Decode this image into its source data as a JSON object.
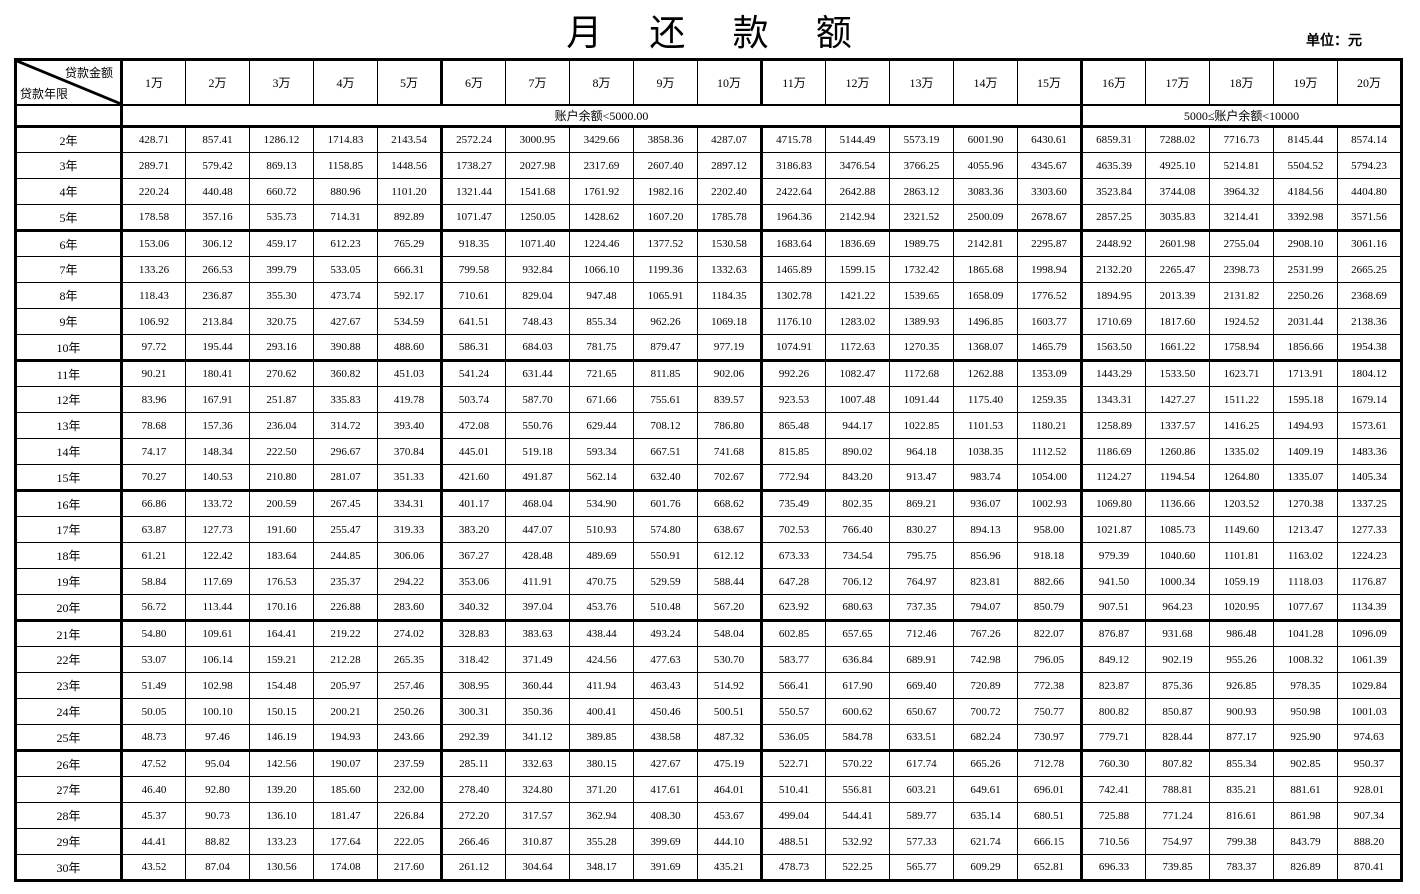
{
  "page": {
    "title": "月 还 款 额",
    "unit_label": "单位：元"
  },
  "colors": {
    "background": "#ffffff",
    "border": "#000000",
    "text": "#000000"
  },
  "table": {
    "corner": {
      "top_right": "贷款金额",
      "bottom_left": "贷款年限"
    },
    "columns": [
      "1万",
      "2万",
      "3万",
      "4万",
      "5万",
      "6万",
      "7万",
      "8万",
      "9万",
      "10万",
      "11万",
      "12万",
      "13万",
      "14万",
      "15万",
      "16万",
      "17万",
      "18万",
      "19万",
      "20万"
    ],
    "balance_groups": [
      {
        "label": "账户余额<5000.00",
        "span": 15
      },
      {
        "label": "5000≤账户余额<10000",
        "span": 5
      }
    ],
    "rows": [
      {
        "label": "2年",
        "values": [
          "428.71",
          "857.41",
          "1286.12",
          "1714.83",
          "2143.54",
          "2572.24",
          "3000.95",
          "3429.66",
          "3858.36",
          "4287.07",
          "4715.78",
          "5144.49",
          "5573.19",
          "6001.90",
          "6430.61",
          "6859.31",
          "7288.02",
          "7716.73",
          "8145.44",
          "8574.14"
        ]
      },
      {
        "label": "3年",
        "values": [
          "289.71",
          "579.42",
          "869.13",
          "1158.85",
          "1448.56",
          "1738.27",
          "2027.98",
          "2317.69",
          "2607.40",
          "2897.12",
          "3186.83",
          "3476.54",
          "3766.25",
          "4055.96",
          "4345.67",
          "4635.39",
          "4925.10",
          "5214.81",
          "5504.52",
          "5794.23"
        ]
      },
      {
        "label": "4年",
        "values": [
          "220.24",
          "440.48",
          "660.72",
          "880.96",
          "1101.20",
          "1321.44",
          "1541.68",
          "1761.92",
          "1982.16",
          "2202.40",
          "2422.64",
          "2642.88",
          "2863.12",
          "3083.36",
          "3303.60",
          "3523.84",
          "3744.08",
          "3964.32",
          "4184.56",
          "4404.80"
        ]
      },
      {
        "label": "5年",
        "values": [
          "178.58",
          "357.16",
          "535.73",
          "714.31",
          "892.89",
          "1071.47",
          "1250.05",
          "1428.62",
          "1607.20",
          "1785.78",
          "1964.36",
          "2142.94",
          "2321.52",
          "2500.09",
          "2678.67",
          "2857.25",
          "3035.83",
          "3214.41",
          "3392.98",
          "3571.56"
        ]
      },
      {
        "label": "6年",
        "values": [
          "153.06",
          "306.12",
          "459.17",
          "612.23",
          "765.29",
          "918.35",
          "1071.40",
          "1224.46",
          "1377.52",
          "1530.58",
          "1683.64",
          "1836.69",
          "1989.75",
          "2142.81",
          "2295.87",
          "2448.92",
          "2601.98",
          "2755.04",
          "2908.10",
          "3061.16"
        ]
      },
      {
        "label": "7年",
        "values": [
          "133.26",
          "266.53",
          "399.79",
          "533.05",
          "666.31",
          "799.58",
          "932.84",
          "1066.10",
          "1199.36",
          "1332.63",
          "1465.89",
          "1599.15",
          "1732.42",
          "1865.68",
          "1998.94",
          "2132.20",
          "2265.47",
          "2398.73",
          "2531.99",
          "2665.25"
        ]
      },
      {
        "label": "8年",
        "values": [
          "118.43",
          "236.87",
          "355.30",
          "473.74",
          "592.17",
          "710.61",
          "829.04",
          "947.48",
          "1065.91",
          "1184.35",
          "1302.78",
          "1421.22",
          "1539.65",
          "1658.09",
          "1776.52",
          "1894.95",
          "2013.39",
          "2131.82",
          "2250.26",
          "2368.69"
        ]
      },
      {
        "label": "9年",
        "values": [
          "106.92",
          "213.84",
          "320.75",
          "427.67",
          "534.59",
          "641.51",
          "748.43",
          "855.34",
          "962.26",
          "1069.18",
          "1176.10",
          "1283.02",
          "1389.93",
          "1496.85",
          "1603.77",
          "1710.69",
          "1817.60",
          "1924.52",
          "2031.44",
          "2138.36"
        ]
      },
      {
        "label": "10年",
        "values": [
          "97.72",
          "195.44",
          "293.16",
          "390.88",
          "488.60",
          "586.31",
          "684.03",
          "781.75",
          "879.47",
          "977.19",
          "1074.91",
          "1172.63",
          "1270.35",
          "1368.07",
          "1465.79",
          "1563.50",
          "1661.22",
          "1758.94",
          "1856.66",
          "1954.38"
        ]
      },
      {
        "label": "11年",
        "values": [
          "90.21",
          "180.41",
          "270.62",
          "360.82",
          "451.03",
          "541.24",
          "631.44",
          "721.65",
          "811.85",
          "902.06",
          "992.26",
          "1082.47",
          "1172.68",
          "1262.88",
          "1353.09",
          "1443.29",
          "1533.50",
          "1623.71",
          "1713.91",
          "1804.12"
        ]
      },
      {
        "label": "12年",
        "values": [
          "83.96",
          "167.91",
          "251.87",
          "335.83",
          "419.78",
          "503.74",
          "587.70",
          "671.66",
          "755.61",
          "839.57",
          "923.53",
          "1007.48",
          "1091.44",
          "1175.40",
          "1259.35",
          "1343.31",
          "1427.27",
          "1511.22",
          "1595.18",
          "1679.14"
        ]
      },
      {
        "label": "13年",
        "values": [
          "78.68",
          "157.36",
          "236.04",
          "314.72",
          "393.40",
          "472.08",
          "550.76",
          "629.44",
          "708.12",
          "786.80",
          "865.48",
          "944.17",
          "1022.85",
          "1101.53",
          "1180.21",
          "1258.89",
          "1337.57",
          "1416.25",
          "1494.93",
          "1573.61"
        ]
      },
      {
        "label": "14年",
        "values": [
          "74.17",
          "148.34",
          "222.50",
          "296.67",
          "370.84",
          "445.01",
          "519.18",
          "593.34",
          "667.51",
          "741.68",
          "815.85",
          "890.02",
          "964.18",
          "1038.35",
          "1112.52",
          "1186.69",
          "1260.86",
          "1335.02",
          "1409.19",
          "1483.36"
        ]
      },
      {
        "label": "15年",
        "values": [
          "70.27",
          "140.53",
          "210.80",
          "281.07",
          "351.33",
          "421.60",
          "491.87",
          "562.14",
          "632.40",
          "702.67",
          "772.94",
          "843.20",
          "913.47",
          "983.74",
          "1054.00",
          "1124.27",
          "1194.54",
          "1264.80",
          "1335.07",
          "1405.34"
        ]
      },
      {
        "label": "16年",
        "values": [
          "66.86",
          "133.72",
          "200.59",
          "267.45",
          "334.31",
          "401.17",
          "468.04",
          "534.90",
          "601.76",
          "668.62",
          "735.49",
          "802.35",
          "869.21",
          "936.07",
          "1002.93",
          "1069.80",
          "1136.66",
          "1203.52",
          "1270.38",
          "1337.25"
        ]
      },
      {
        "label": "17年",
        "values": [
          "63.87",
          "127.73",
          "191.60",
          "255.47",
          "319.33",
          "383.20",
          "447.07",
          "510.93",
          "574.80",
          "638.67",
          "702.53",
          "766.40",
          "830.27",
          "894.13",
          "958.00",
          "1021.87",
          "1085.73",
          "1149.60",
          "1213.47",
          "1277.33"
        ]
      },
      {
        "label": "18年",
        "values": [
          "61.21",
          "122.42",
          "183.64",
          "244.85",
          "306.06",
          "367.27",
          "428.48",
          "489.69",
          "550.91",
          "612.12",
          "673.33",
          "734.54",
          "795.75",
          "856.96",
          "918.18",
          "979.39",
          "1040.60",
          "1101.81",
          "1163.02",
          "1224.23"
        ]
      },
      {
        "label": "19年",
        "values": [
          "58.84",
          "117.69",
          "176.53",
          "235.37",
          "294.22",
          "353.06",
          "411.91",
          "470.75",
          "529.59",
          "588.44",
          "647.28",
          "706.12",
          "764.97",
          "823.81",
          "882.66",
          "941.50",
          "1000.34",
          "1059.19",
          "1118.03",
          "1176.87"
        ]
      },
      {
        "label": "20年",
        "values": [
          "56.72",
          "113.44",
          "170.16",
          "226.88",
          "283.60",
          "340.32",
          "397.04",
          "453.76",
          "510.48",
          "567.20",
          "623.92",
          "680.63",
          "737.35",
          "794.07",
          "850.79",
          "907.51",
          "964.23",
          "1020.95",
          "1077.67",
          "1134.39"
        ]
      },
      {
        "label": "21年",
        "values": [
          "54.80",
          "109.61",
          "164.41",
          "219.22",
          "274.02",
          "328.83",
          "383.63",
          "438.44",
          "493.24",
          "548.04",
          "602.85",
          "657.65",
          "712.46",
          "767.26",
          "822.07",
          "876.87",
          "931.68",
          "986.48",
          "1041.28",
          "1096.09"
        ]
      },
      {
        "label": "22年",
        "values": [
          "53.07",
          "106.14",
          "159.21",
          "212.28",
          "265.35",
          "318.42",
          "371.49",
          "424.56",
          "477.63",
          "530.70",
          "583.77",
          "636.84",
          "689.91",
          "742.98",
          "796.05",
          "849.12",
          "902.19",
          "955.26",
          "1008.32",
          "1061.39"
        ]
      },
      {
        "label": "23年",
        "values": [
          "51.49",
          "102.98",
          "154.48",
          "205.97",
          "257.46",
          "308.95",
          "360.44",
          "411.94",
          "463.43",
          "514.92",
          "566.41",
          "617.90",
          "669.40",
          "720.89",
          "772.38",
          "823.87",
          "875.36",
          "926.85",
          "978.35",
          "1029.84"
        ]
      },
      {
        "label": "24年",
        "values": [
          "50.05",
          "100.10",
          "150.15",
          "200.21",
          "250.26",
          "300.31",
          "350.36",
          "400.41",
          "450.46",
          "500.51",
          "550.57",
          "600.62",
          "650.67",
          "700.72",
          "750.77",
          "800.82",
          "850.87",
          "900.93",
          "950.98",
          "1001.03"
        ]
      },
      {
        "label": "25年",
        "values": [
          "48.73",
          "97.46",
          "146.19",
          "194.93",
          "243.66",
          "292.39",
          "341.12",
          "389.85",
          "438.58",
          "487.32",
          "536.05",
          "584.78",
          "633.51",
          "682.24",
          "730.97",
          "779.71",
          "828.44",
          "877.17",
          "925.90",
          "974.63"
        ]
      },
      {
        "label": "26年",
        "values": [
          "47.52",
          "95.04",
          "142.56",
          "190.07",
          "237.59",
          "285.11",
          "332.63",
          "380.15",
          "427.67",
          "475.19",
          "522.71",
          "570.22",
          "617.74",
          "665.26",
          "712.78",
          "760.30",
          "807.82",
          "855.34",
          "902.85",
          "950.37"
        ]
      },
      {
        "label": "27年",
        "values": [
          "46.40",
          "92.80",
          "139.20",
          "185.60",
          "232.00",
          "278.40",
          "324.80",
          "371.20",
          "417.61",
          "464.01",
          "510.41",
          "556.81",
          "603.21",
          "649.61",
          "696.01",
          "742.41",
          "788.81",
          "835.21",
          "881.61",
          "928.01"
        ]
      },
      {
        "label": "28年",
        "values": [
          "45.37",
          "90.73",
          "136.10",
          "181.47",
          "226.84",
          "272.20",
          "317.57",
          "362.94",
          "408.30",
          "453.67",
          "499.04",
          "544.41",
          "589.77",
          "635.14",
          "680.51",
          "725.88",
          "771.24",
          "816.61",
          "861.98",
          "907.34"
        ]
      },
      {
        "label": "29年",
        "values": [
          "44.41",
          "88.82",
          "133.23",
          "177.64",
          "222.05",
          "266.46",
          "310.87",
          "355.28",
          "399.69",
          "444.10",
          "488.51",
          "532.92",
          "577.33",
          "621.74",
          "666.15",
          "710.56",
          "754.97",
          "799.38",
          "843.79",
          "888.20"
        ]
      },
      {
        "label": "30年",
        "values": [
          "43.52",
          "87.04",
          "130.56",
          "174.08",
          "217.60",
          "261.12",
          "304.64",
          "348.17",
          "391.69",
          "435.21",
          "478.73",
          "522.25",
          "565.77",
          "609.29",
          "652.81",
          "696.33",
          "739.85",
          "783.37",
          "826.89",
          "870.41"
        ]
      }
    ]
  }
}
